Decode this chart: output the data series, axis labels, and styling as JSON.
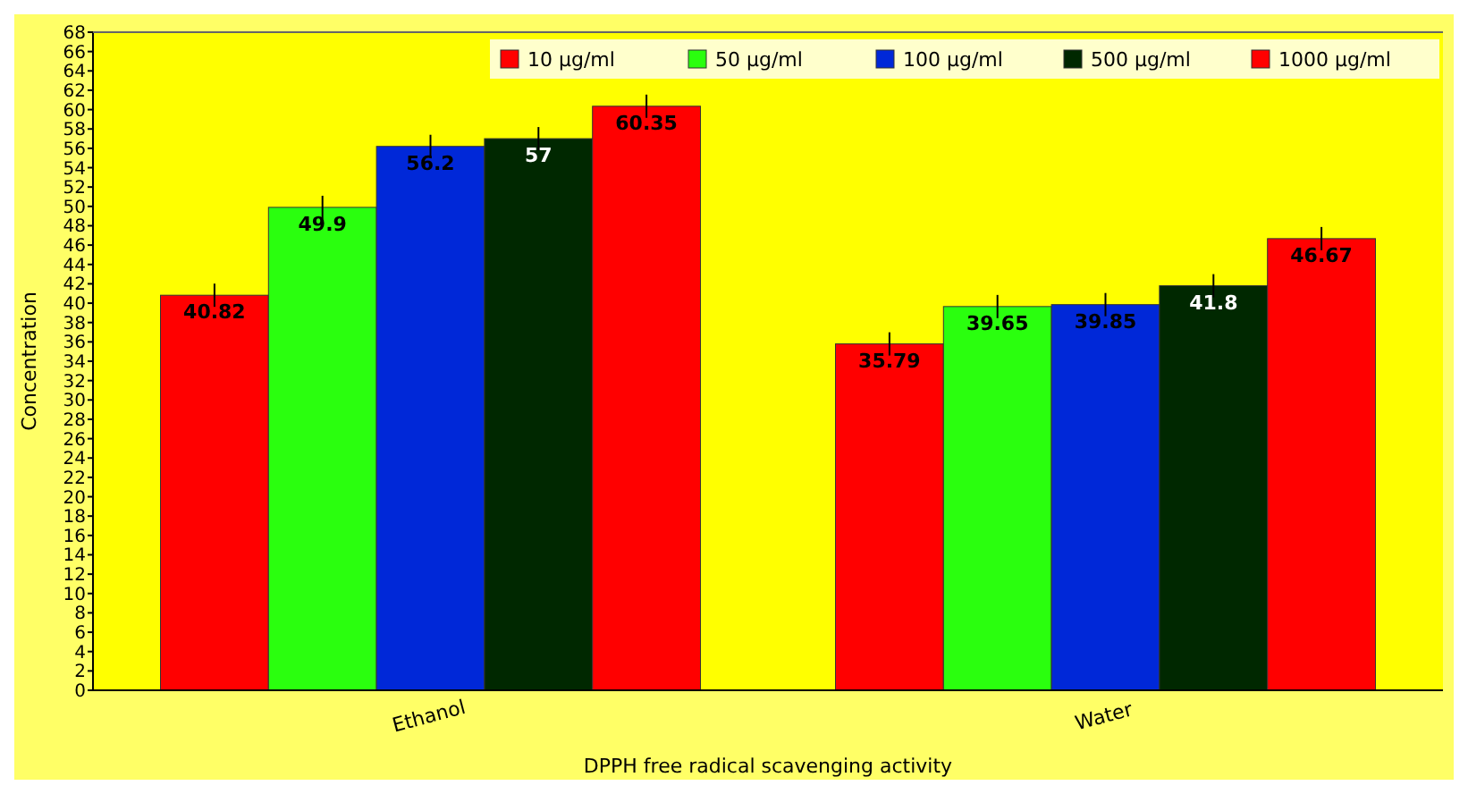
{
  "chart_data": {
    "type": "bar",
    "xlabel": "DPPH free radical scavenging activity",
    "ylabel": "Concentration",
    "categories": [
      "Ethanol",
      "Water"
    ],
    "series": [
      {
        "name": "10 μg/ml",
        "color": "#ff0000",
        "values": [
          40.82,
          35.79
        ],
        "errors": [
          1.2,
          1.2
        ]
      },
      {
        "name": "50 μg/ml",
        "color": "#2aff0e",
        "values": [
          49.9,
          39.65
        ],
        "errors": [
          1.2,
          1.2
        ]
      },
      {
        "name": "100 μg/ml",
        "color": "#0028d8",
        "values": [
          56.2,
          39.85
        ],
        "errors": [
          1.2,
          1.2
        ]
      },
      {
        "name": "500 μg/ml",
        "color": "#002800",
        "values": [
          57,
          41.8
        ],
        "errors": [
          1.2,
          1.2
        ]
      },
      {
        "name": "1000 μg/ml",
        "color": "#ff0000",
        "values": [
          60.35,
          46.67
        ],
        "errors": [
          1.2,
          1.2
        ]
      }
    ],
    "ylim": [
      0,
      68
    ],
    "yticks": [
      0,
      2,
      4,
      6,
      8,
      10,
      12,
      14,
      16,
      18,
      20,
      22,
      24,
      26,
      28,
      30,
      32,
      34,
      36,
      38,
      40,
      42,
      44,
      46,
      48,
      50,
      52,
      54,
      56,
      58,
      60,
      62,
      64,
      66,
      68
    ],
    "data_labels": true,
    "legend": "top right",
    "grid": false
  }
}
